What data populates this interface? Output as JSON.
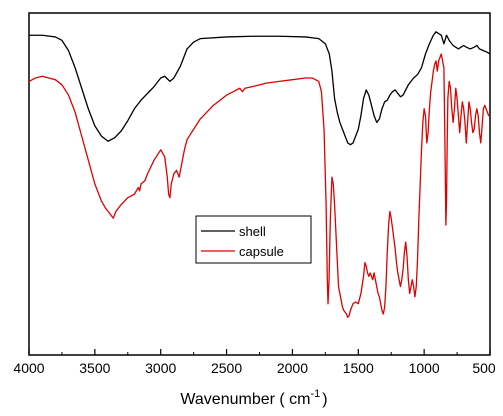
{
  "chart_data": {
    "type": "line",
    "xlabel": "Wavenumber ( cm",
    "xlabel_sup": "-1",
    "xlabel_close": ")",
    "ylabel": "",
    "xlim": [
      4000,
      500
    ],
    "ylim": [
      0,
      1
    ],
    "x_reversed": true,
    "yaxis_ticks": false,
    "grid": false,
    "legend_position": "center",
    "x_ticks": [
      {
        "value": 4000,
        "label": "4000"
      },
      {
        "value": 3500,
        "label": "3500"
      },
      {
        "value": 3000,
        "label": "3000"
      },
      {
        "value": 2500,
        "label": "2500"
      },
      {
        "value": 2000,
        "label": "2000"
      },
      {
        "value": 1500,
        "label": "1500"
      },
      {
        "value": 1000,
        "label": "1000"
      },
      {
        "value": 500,
        "label": "500"
      }
    ],
    "series": [
      {
        "name": "shell",
        "color": "#000000",
        "points": [
          [
            4000,
            0.935
          ],
          [
            3900,
            0.935
          ],
          [
            3800,
            0.93
          ],
          [
            3750,
            0.92
          ],
          [
            3700,
            0.89
          ],
          [
            3650,
            0.84
          ],
          [
            3600,
            0.78
          ],
          [
            3550,
            0.72
          ],
          [
            3500,
            0.67
          ],
          [
            3450,
            0.64
          ],
          [
            3400,
            0.625
          ],
          [
            3350,
            0.635
          ],
          [
            3300,
            0.655
          ],
          [
            3250,
            0.685
          ],
          [
            3200,
            0.72
          ],
          [
            3150,
            0.745
          ],
          [
            3100,
            0.765
          ],
          [
            3050,
            0.785
          ],
          [
            3000,
            0.81
          ],
          [
            2970,
            0.815
          ],
          [
            2930,
            0.8
          ],
          [
            2900,
            0.81
          ],
          [
            2850,
            0.845
          ],
          [
            2800,
            0.895
          ],
          [
            2750,
            0.915
          ],
          [
            2700,
            0.925
          ],
          [
            2500,
            0.93
          ],
          [
            2300,
            0.932
          ],
          [
            2100,
            0.932
          ],
          [
            1900,
            0.93
          ],
          [
            1800,
            0.925
          ],
          [
            1750,
            0.91
          ],
          [
            1720,
            0.88
          ],
          [
            1700,
            0.83
          ],
          [
            1680,
            0.75
          ],
          [
            1660,
            0.71
          ],
          [
            1640,
            0.68
          ],
          [
            1620,
            0.66
          ],
          [
            1600,
            0.64
          ],
          [
            1580,
            0.62
          ],
          [
            1560,
            0.615
          ],
          [
            1540,
            0.62
          ],
          [
            1520,
            0.64
          ],
          [
            1500,
            0.66
          ],
          [
            1480,
            0.7
          ],
          [
            1460,
            0.75
          ],
          [
            1440,
            0.775
          ],
          [
            1420,
            0.76
          ],
          [
            1400,
            0.73
          ],
          [
            1380,
            0.7
          ],
          [
            1360,
            0.68
          ],
          [
            1340,
            0.69
          ],
          [
            1320,
            0.72
          ],
          [
            1300,
            0.74
          ],
          [
            1280,
            0.745
          ],
          [
            1260,
            0.76
          ],
          [
            1240,
            0.77
          ],
          [
            1220,
            0.775
          ],
          [
            1200,
            0.765
          ],
          [
            1180,
            0.755
          ],
          [
            1160,
            0.76
          ],
          [
            1140,
            0.775
          ],
          [
            1120,
            0.79
          ],
          [
            1100,
            0.8
          ],
          [
            1080,
            0.81
          ],
          [
            1050,
            0.82
          ],
          [
            1020,
            0.84
          ],
          [
            990,
            0.88
          ],
          [
            960,
            0.91
          ],
          [
            930,
            0.935
          ],
          [
            910,
            0.945
          ],
          [
            890,
            0.94
          ],
          [
            870,
            0.935
          ],
          [
            850,
            0.91
          ],
          [
            830,
            0.935
          ],
          [
            810,
            0.92
          ],
          [
            780,
            0.905
          ],
          [
            760,
            0.9
          ],
          [
            740,
            0.895
          ],
          [
            720,
            0.9
          ],
          [
            700,
            0.905
          ],
          [
            680,
            0.9
          ],
          [
            650,
            0.895
          ],
          [
            620,
            0.9
          ],
          [
            600,
            0.905
          ],
          [
            580,
            0.895
          ],
          [
            550,
            0.89
          ],
          [
            520,
            0.885
          ],
          [
            500,
            0.88
          ]
        ]
      },
      {
        "name": "capsule",
        "color": "#e00000",
        "points": [
          [
            4000,
            0.8
          ],
          [
            3950,
            0.81
          ],
          [
            3900,
            0.815
          ],
          [
            3850,
            0.81
          ],
          [
            3800,
            0.805
          ],
          [
            3750,
            0.79
          ],
          [
            3700,
            0.76
          ],
          [
            3650,
            0.71
          ],
          [
            3600,
            0.64
          ],
          [
            3550,
            0.57
          ],
          [
            3500,
            0.5
          ],
          [
            3450,
            0.45
          ],
          [
            3420,
            0.43
          ],
          [
            3400,
            0.42
          ],
          [
            3380,
            0.41
          ],
          [
            3360,
            0.4
          ],
          [
            3340,
            0.42
          ],
          [
            3300,
            0.44
          ],
          [
            3250,
            0.46
          ],
          [
            3200,
            0.47
          ],
          [
            3170,
            0.49
          ],
          [
            3160,
            0.48
          ],
          [
            3150,
            0.5
          ],
          [
            3120,
            0.51
          ],
          [
            3100,
            0.53
          ],
          [
            3050,
            0.57
          ],
          [
            3000,
            0.6
          ],
          [
            2970,
            0.58
          ],
          [
            2950,
            0.52
          ],
          [
            2940,
            0.47
          ],
          [
            2930,
            0.46
          ],
          [
            2920,
            0.5
          ],
          [
            2900,
            0.53
          ],
          [
            2880,
            0.54
          ],
          [
            2860,
            0.52
          ],
          [
            2840,
            0.56
          ],
          [
            2820,
            0.6
          ],
          [
            2800,
            0.63
          ],
          [
            2750,
            0.66
          ],
          [
            2700,
            0.69
          ],
          [
            2650,
            0.71
          ],
          [
            2600,
            0.73
          ],
          [
            2550,
            0.745
          ],
          [
            2500,
            0.76
          ],
          [
            2450,
            0.77
          ],
          [
            2400,
            0.78
          ],
          [
            2380,
            0.77
          ],
          [
            2360,
            0.78
          ],
          [
            2300,
            0.785
          ],
          [
            2250,
            0.79
          ],
          [
            2200,
            0.795
          ],
          [
            2100,
            0.8
          ],
          [
            2000,
            0.805
          ],
          [
            1900,
            0.81
          ],
          [
            1850,
            0.81
          ],
          [
            1800,
            0.8
          ],
          [
            1780,
            0.77
          ],
          [
            1760,
            0.66
          ],
          [
            1745,
            0.45
          ],
          [
            1735,
            0.22
          ],
          [
            1730,
            0.15
          ],
          [
            1722,
            0.22
          ],
          [
            1712,
            0.4
          ],
          [
            1700,
            0.52
          ],
          [
            1690,
            0.5
          ],
          [
            1680,
            0.44
          ],
          [
            1670,
            0.36
          ],
          [
            1660,
            0.28
          ],
          [
            1650,
            0.2
          ],
          [
            1640,
            0.18
          ],
          [
            1630,
            0.16
          ],
          [
            1620,
            0.14
          ],
          [
            1610,
            0.13
          ],
          [
            1600,
            0.125
          ],
          [
            1590,
            0.12
          ],
          [
            1580,
            0.11
          ],
          [
            1570,
            0.115
          ],
          [
            1560,
            0.13
          ],
          [
            1550,
            0.14
          ],
          [
            1540,
            0.15
          ],
          [
            1520,
            0.155
          ],
          [
            1500,
            0.15
          ],
          [
            1480,
            0.18
          ],
          [
            1460,
            0.23
          ],
          [
            1450,
            0.27
          ],
          [
            1440,
            0.26
          ],
          [
            1430,
            0.24
          ],
          [
            1420,
            0.23
          ],
          [
            1410,
            0.24
          ],
          [
            1400,
            0.23
          ],
          [
            1390,
            0.22
          ],
          [
            1380,
            0.24
          ],
          [
            1370,
            0.22
          ],
          [
            1360,
            0.2
          ],
          [
            1350,
            0.18
          ],
          [
            1340,
            0.17
          ],
          [
            1330,
            0.15
          ],
          [
            1320,
            0.13
          ],
          [
            1310,
            0.12
          ],
          [
            1300,
            0.14
          ],
          [
            1290,
            0.2
          ],
          [
            1280,
            0.3
          ],
          [
            1270,
            0.38
          ],
          [
            1260,
            0.42
          ],
          [
            1250,
            0.4
          ],
          [
            1240,
            0.37
          ],
          [
            1230,
            0.34
          ],
          [
            1220,
            0.31
          ],
          [
            1210,
            0.27
          ],
          [
            1200,
            0.24
          ],
          [
            1190,
            0.22
          ],
          [
            1180,
            0.2
          ],
          [
            1170,
            0.22
          ],
          [
            1160,
            0.25
          ],
          [
            1150,
            0.3
          ],
          [
            1140,
            0.33
          ],
          [
            1130,
            0.29
          ],
          [
            1120,
            0.22
          ],
          [
            1110,
            0.18
          ],
          [
            1100,
            0.2
          ],
          [
            1090,
            0.22
          ],
          [
            1080,
            0.2
          ],
          [
            1070,
            0.17
          ],
          [
            1060,
            0.2
          ],
          [
            1050,
            0.28
          ],
          [
            1040,
            0.4
          ],
          [
            1030,
            0.5
          ],
          [
            1020,
            0.6
          ],
          [
            1010,
            0.68
          ],
          [
            1000,
            0.72
          ],
          [
            990,
            0.7
          ],
          [
            980,
            0.62
          ],
          [
            970,
            0.65
          ],
          [
            960,
            0.72
          ],
          [
            950,
            0.77
          ],
          [
            940,
            0.8
          ],
          [
            930,
            0.83
          ],
          [
            920,
            0.85
          ],
          [
            910,
            0.86
          ],
          [
            900,
            0.83
          ],
          [
            890,
            0.86
          ],
          [
            880,
            0.87
          ],
          [
            870,
            0.88
          ],
          [
            860,
            0.86
          ],
          [
            850,
            0.84
          ],
          [
            845,
            0.7
          ],
          [
            840,
            0.55
          ],
          [
            835,
            0.38
          ],
          [
            830,
            0.45
          ],
          [
            825,
            0.62
          ],
          [
            820,
            0.75
          ],
          [
            810,
            0.8
          ],
          [
            800,
            0.78
          ],
          [
            790,
            0.72
          ],
          [
            780,
            0.68
          ],
          [
            770,
            0.72
          ],
          [
            760,
            0.78
          ],
          [
            750,
            0.75
          ],
          [
            740,
            0.7
          ],
          [
            730,
            0.65
          ],
          [
            720,
            0.7
          ],
          [
            710,
            0.74
          ],
          [
            700,
            0.72
          ],
          [
            690,
            0.68
          ],
          [
            680,
            0.62
          ],
          [
            670,
            0.68
          ],
          [
            660,
            0.74
          ],
          [
            650,
            0.72
          ],
          [
            640,
            0.68
          ],
          [
            630,
            0.65
          ],
          [
            620,
            0.66
          ],
          [
            610,
            0.7
          ],
          [
            600,
            0.72
          ],
          [
            590,
            0.7
          ],
          [
            580,
            0.65
          ],
          [
            570,
            0.62
          ],
          [
            560,
            0.67
          ],
          [
            550,
            0.72
          ],
          [
            540,
            0.73
          ],
          [
            530,
            0.72
          ],
          [
            520,
            0.71
          ],
          [
            510,
            0.7
          ],
          [
            500,
            0.7
          ]
        ]
      }
    ]
  }
}
